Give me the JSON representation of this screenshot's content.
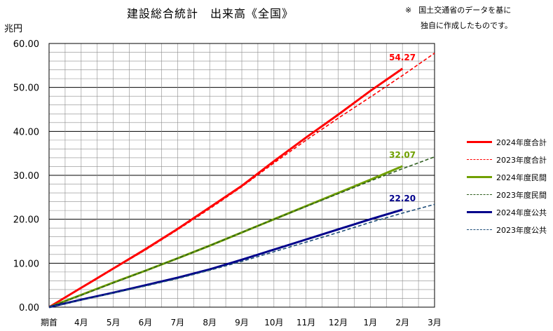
{
  "header": {
    "title": "建設総合統計　出来高《全国》",
    "note_line1_mark": "※",
    "note_line1": "国土交通省のデータを基に",
    "note_line2": "独自に作成したものです。"
  },
  "chart_data": {
    "type": "line",
    "title": "建設総合統計　出来高《全国》",
    "ylabel": "兆円",
    "xlabel": "",
    "categories": [
      "期首",
      "4月",
      "5月",
      "6月",
      "7月",
      "8月",
      "9月",
      "10月",
      "11月",
      "12月",
      "1月",
      "2月",
      "3月"
    ],
    "ylim": [
      0,
      60
    ],
    "yticks": [
      "0.00",
      "10.00",
      "20.00",
      "30.00",
      "40.00",
      "50.00",
      "60.00"
    ],
    "grid": true,
    "legend_position": "right",
    "series": [
      {
        "name": "2024年度合計",
        "color": "#ff0000",
        "dash": false,
        "values": [
          0,
          4.4,
          8.8,
          13.2,
          17.8,
          22.7,
          27.6,
          33.2,
          38.6,
          43.8,
          49.2,
          54.27,
          null
        ],
        "label": "54.27"
      },
      {
        "name": "2023年度合計",
        "color": "#ff0000",
        "dash": true,
        "values": [
          0,
          4.3,
          8.7,
          13.0,
          17.6,
          22.4,
          27.4,
          32.8,
          38.0,
          43.0,
          47.8,
          52.7,
          57.8
        ]
      },
      {
        "name": "2024年度民間",
        "color": "#70a000",
        "dash": false,
        "values": [
          0,
          2.8,
          5.6,
          8.3,
          11.1,
          14.0,
          17.0,
          20.0,
          23.0,
          26.0,
          29.0,
          32.07,
          null
        ],
        "label": "32.07"
      },
      {
        "name": "2023年度民間",
        "color": "#2e5e1e",
        "dash": true,
        "values": [
          0,
          2.7,
          5.5,
          8.3,
          11.1,
          14.0,
          17.0,
          20.0,
          22.9,
          25.8,
          28.7,
          31.5,
          34.2
        ]
      },
      {
        "name": "2024年度公共",
        "color": "#00008b",
        "dash": false,
        "values": [
          0,
          1.7,
          3.3,
          5.0,
          6.7,
          8.6,
          10.8,
          13.1,
          15.4,
          17.7,
          20.0,
          22.2,
          null
        ],
        "label": "22.20"
      },
      {
        "name": "2023年度公共",
        "color": "#1f4e79",
        "dash": true,
        "values": [
          0,
          1.6,
          3.2,
          4.8,
          6.5,
          8.4,
          10.4,
          12.6,
          14.8,
          17.0,
          19.3,
          21.4,
          23.4
        ]
      }
    ]
  }
}
